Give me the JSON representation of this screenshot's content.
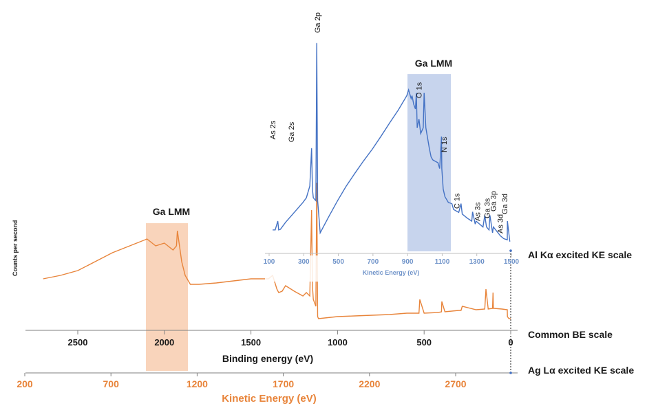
{
  "chart_data": {
    "type": "line",
    "ylabel": "Counts per second",
    "axes": {
      "be": {
        "label": "Binding energy (eV)",
        "ticks": [
          2500,
          2000,
          1500,
          1000,
          500,
          0
        ],
        "range": [
          2800,
          0
        ],
        "scale_name": "Common BE scale"
      },
      "ke_ag": {
        "label": "Kinetic Energy (eV)",
        "ticks": [
          200,
          700,
          1200,
          1700,
          2200,
          2700
        ],
        "range": [
          200,
          3000
        ],
        "scale_name": "Ag Lα excited KE scale",
        "color": "#e8843a"
      },
      "ke_al": {
        "label": "Kinetic Energy (eV)",
        "ticks": [
          100,
          300,
          500,
          700,
          900,
          1100,
          1300,
          1500
        ],
        "range": [
          100,
          1487
        ],
        "scale_name": "Al Kα excited KE scale",
        "color": "#6f93c9"
      }
    },
    "series": [
      {
        "name": "Al Kα excited",
        "color": "#4472c4",
        "x_be": [
          1375,
          1360,
          1345,
          1340,
          1330,
          1300,
          1250,
          1200,
          1180,
          1160,
          1150,
          1145,
          1140,
          1125,
          1120,
          1115,
          1100,
          1050,
          1000,
          950,
          900,
          850,
          800,
          750,
          700,
          650,
          600,
          590,
          575,
          570,
          560,
          550,
          545,
          540,
          530,
          520,
          505,
          500,
          490,
          470,
          460,
          450,
          420,
          410,
          400,
          398,
          390,
          380,
          360,
          340,
          330,
          300,
          287,
          280,
          250,
          225,
          220,
          205,
          200,
          160,
          150,
          140,
          125,
          120,
          105,
          100,
          60,
          40,
          20,
          19,
          5
        ],
        "y": [
          25,
          25,
          40,
          25,
          26,
          38,
          55,
          72,
          80,
          100,
          165,
          95,
          80,
          75,
          345,
          75,
          20,
          48,
          75,
          100,
          122,
          143,
          163,
          185,
          208,
          230,
          255,
          265,
          250,
          255,
          240,
          232,
          260,
          200,
          215,
          190,
          200,
          260,
          200,
          165,
          150,
          145,
          140,
          130,
          185,
          130,
          95,
          82,
          72,
          70,
          60,
          55,
          70,
          52,
          45,
          40,
          56,
          35,
          40,
          30,
          50,
          30,
          25,
          50,
          20,
          30,
          15,
          10,
          8,
          40,
          5
        ]
      },
      {
        "name": "Ag Lα excited",
        "color": "#e8843a",
        "x_be": [
          2700,
          2600,
          2500,
          2400,
          2300,
          2200,
          2100,
          2050,
          2000,
          1950,
          1930,
          1925,
          1900,
          1880,
          1850,
          1800,
          1700,
          1600,
          1500,
          1400,
          1375,
          1350,
          1340,
          1320,
          1300,
          1250,
          1200,
          1180,
          1160,
          1150,
          1145,
          1140,
          1125,
          1120,
          1115,
          1110,
          1000,
          900,
          800,
          700,
          600,
          530,
          525,
          500,
          420,
          400,
          398,
          380,
          300,
          287,
          280,
          200,
          150,
          143,
          130,
          105,
          102,
          100,
          50,
          20,
          19,
          10,
          0
        ],
        "y": [
          0,
          5,
          12,
          25,
          38,
          48,
          58,
          48,
          52,
          42,
          48,
          70,
          25,
          5,
          -8,
          -8,
          -6,
          -3,
          0,
          0,
          5,
          -15,
          -20,
          -18,
          -10,
          -18,
          -25,
          -20,
          -25,
          100,
          -10,
          -30,
          -40,
          140,
          -55,
          -58,
          -55,
          -54,
          -53,
          -52,
          -50,
          -50,
          -30,
          -50,
          -49,
          -48,
          -33,
          -48,
          -46,
          -46,
          -40,
          -45,
          -44,
          -15,
          -44,
          -43,
          -20,
          -43,
          -44,
          -45,
          -55,
          -58,
          -58
        ]
      }
    ],
    "annotations": [
      {
        "text": "Ga 2p",
        "be": 1117,
        "series": "Al Kα excited"
      },
      {
        "text": "As 2s",
        "be": 1359,
        "series": "Al Kα excited"
      },
      {
        "text": "Ga 2s",
        "be": 1300,
        "series": "Al Kα excited"
      },
      {
        "text": "O 1s",
        "be": 531,
        "series": "Al Kα excited"
      },
      {
        "text": "N 1s",
        "be": 398,
        "series": "Al Kα excited"
      },
      {
        "text": "C 1s",
        "be": 285,
        "series": "Al Kα excited"
      },
      {
        "text": "As 3s",
        "be": 204,
        "series": "Al Kα excited"
      },
      {
        "text": "Ga 3s",
        "be": 160,
        "series": "Al Kα excited"
      },
      {
        "text": "Ga 3p",
        "be": 105,
        "series": "Al Kα excited"
      },
      {
        "text": "As 3d",
        "be": 41,
        "series": "Al Kα excited"
      },
      {
        "text": "Ga 3d",
        "be": 19,
        "series": "Al Kα excited"
      }
    ],
    "regions": [
      {
        "label": "Ga LMM",
        "series": "Ag Lα excited",
        "be_range": [
          2110,
          1870
        ],
        "color": "#f4b183"
      },
      {
        "label": "Ga LMM",
        "series": "Al Kα excited",
        "be_range": [
          595,
          350
        ],
        "color": "#8faadc"
      }
    ]
  }
}
